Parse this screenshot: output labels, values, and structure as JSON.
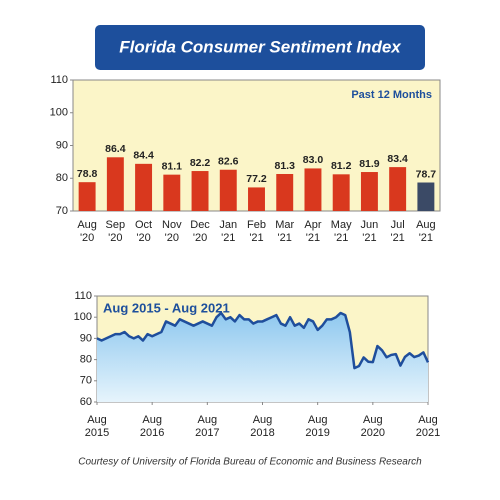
{
  "title": "Florida Consumer Sentiment Index",
  "source": "Courtesy of University of Florida Bureau of Economic and Business Research",
  "chart_data": [
    {
      "type": "bar",
      "annotation": "Past 12 Months",
      "categories": [
        "Aug\n'20",
        "Sep\n'20",
        "Oct\n'20",
        "Nov\n'20",
        "Dec\n'20",
        "Jan\n'21",
        "Feb\n'21",
        "Mar\n'21",
        "Apr\n'21",
        "May\n'21",
        "Jun\n'21",
        "Jul\n'21",
        "Aug\n'21"
      ],
      "values": [
        78.8,
        86.4,
        84.4,
        81.1,
        82.2,
        82.6,
        77.2,
        81.3,
        83.0,
        81.2,
        81.9,
        83.4,
        78.7
      ],
      "value_labels": [
        "78.8",
        "86.4",
        "84.4",
        "81.1",
        "82.2",
        "82.6",
        "77.2",
        "81.3",
        "83.0",
        "81.2",
        "81.9",
        "83.4",
        "78.7"
      ],
      "colors": [
        "#d9381e",
        "#d9381e",
        "#d9381e",
        "#d9381e",
        "#d9381e",
        "#d9381e",
        "#d9381e",
        "#d9381e",
        "#d9381e",
        "#d9381e",
        "#d9381e",
        "#d9381e",
        "#3b4a66"
      ],
      "background": "#fbf5c8",
      "ylim": [
        70,
        110
      ],
      "yticks": [
        70,
        80,
        90,
        100,
        110
      ],
      "grid": false
    },
    {
      "type": "line",
      "annotation": "Aug 2015 - Aug 2021",
      "x": [
        "2015-08",
        "2015-09",
        "2015-10",
        "2015-11",
        "2015-12",
        "2016-01",
        "2016-02",
        "2016-03",
        "2016-04",
        "2016-05",
        "2016-06",
        "2016-07",
        "2016-08",
        "2016-09",
        "2016-10",
        "2016-11",
        "2016-12",
        "2017-01",
        "2017-02",
        "2017-03",
        "2017-04",
        "2017-05",
        "2017-06",
        "2017-07",
        "2017-08",
        "2017-09",
        "2017-10",
        "2017-11",
        "2017-12",
        "2018-01",
        "2018-02",
        "2018-03",
        "2018-04",
        "2018-05",
        "2018-06",
        "2018-07",
        "2018-08",
        "2018-09",
        "2018-10",
        "2018-11",
        "2018-12",
        "2019-01",
        "2019-02",
        "2019-03",
        "2019-04",
        "2019-05",
        "2019-06",
        "2019-07",
        "2019-08",
        "2019-09",
        "2019-10",
        "2019-11",
        "2019-12",
        "2020-01",
        "2020-02",
        "2020-03",
        "2020-04",
        "2020-05",
        "2020-06",
        "2020-07",
        "2020-08",
        "2020-09",
        "2020-10",
        "2020-11",
        "2020-12",
        "2021-01",
        "2021-02",
        "2021-03",
        "2021-04",
        "2021-05",
        "2021-06",
        "2021-07",
        "2021-08"
      ],
      "values": [
        90,
        89,
        90,
        91,
        92,
        92,
        93,
        91,
        90,
        91,
        89,
        92,
        91,
        92,
        93,
        98,
        97,
        96,
        99,
        98,
        97,
        96,
        97,
        98,
        97,
        96,
        100,
        102,
        99,
        100,
        98,
        101,
        99,
        99,
        97,
        98,
        98,
        99,
        100,
        101,
        97,
        96,
        100,
        96,
        97,
        95,
        99,
        98,
        94,
        96,
        99,
        99,
        100,
        102,
        101,
        93,
        76,
        77,
        81,
        79,
        78.8,
        86.4,
        84.4,
        81.1,
        82.2,
        82.6,
        77.2,
        81.3,
        83.0,
        81.2,
        81.9,
        83.4,
        78.7
      ],
      "color": "#1f4e9c",
      "fill_color": "#bfe0f7",
      "background": "#fbf5c8",
      "xlim": [
        "2015-08",
        "2021-08"
      ],
      "xticks": [
        {
          "value": "2015-08",
          "label": "Aug\n2015"
        },
        {
          "value": "2016-08",
          "label": "Aug\n2016"
        },
        {
          "value": "2017-08",
          "label": "Aug\n2017"
        },
        {
          "value": "2018-08",
          "label": "Aug\n2018"
        },
        {
          "value": "2019-08",
          "label": "Aug\n2019"
        },
        {
          "value": "2020-08",
          "label": "Aug\n2020"
        },
        {
          "value": "2021-08",
          "label": "Aug\n2021"
        }
      ],
      "ylim": [
        60,
        110
      ],
      "yticks": [
        60,
        70,
        80,
        90,
        100,
        110
      ],
      "grid": false
    }
  ]
}
